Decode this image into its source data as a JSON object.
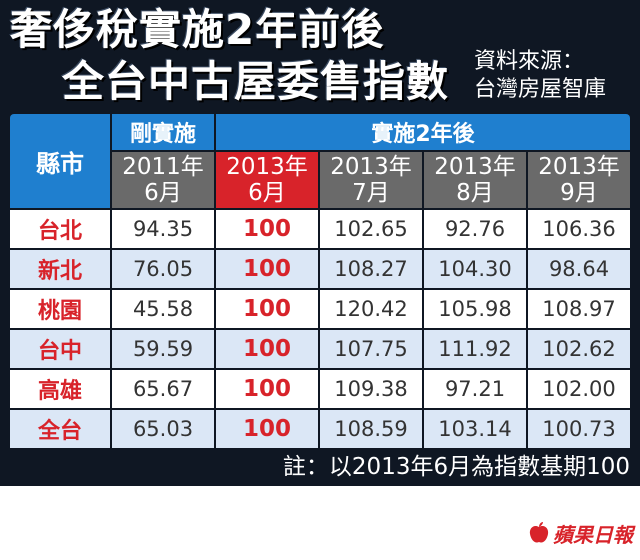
{
  "title": {
    "line1": "奢侈稅實施2年前後",
    "line2": "全台中古屋委售指數"
  },
  "source": {
    "line1": "資料來源：",
    "line2": "台灣房屋智庫"
  },
  "table": {
    "city_header": "縣市",
    "group_before": "剛實施",
    "group_after": "實施2年後",
    "columns": [
      {
        "year": "2011年",
        "month": "6月",
        "highlight": false
      },
      {
        "year": "2013年",
        "month": "6月",
        "highlight": true
      },
      {
        "year": "2013年",
        "month": "7月",
        "highlight": false
      },
      {
        "year": "2013年",
        "month": "8月",
        "highlight": false
      },
      {
        "year": "2013年",
        "month": "9月",
        "highlight": false
      }
    ],
    "rows": [
      {
        "city": "台北",
        "values": [
          "94.35",
          "100",
          "102.65",
          "92.76",
          "106.36"
        ]
      },
      {
        "city": "新北",
        "values": [
          "76.05",
          "100",
          "108.27",
          "104.30",
          "98.64"
        ]
      },
      {
        "city": "桃園",
        "values": [
          "45.58",
          "100",
          "120.42",
          "105.98",
          "108.97"
        ]
      },
      {
        "city": "台中",
        "values": [
          "59.59",
          "100",
          "107.75",
          "111.92",
          "102.62"
        ]
      },
      {
        "city": "高雄",
        "values": [
          "65.67",
          "100",
          "109.38",
          "97.21",
          "102.00"
        ]
      },
      {
        "city": "全台",
        "values": [
          "65.03",
          "100",
          "108.59",
          "103.14",
          "100.73"
        ]
      }
    ]
  },
  "note": "註：以2013年6月為指數基期100",
  "logo": {
    "text": "蘋果日報",
    "icon": "apple-icon"
  },
  "colors": {
    "background": "#0f1723",
    "header_blue": "#1f7fcf",
    "header_gray": "#6a6a6a",
    "accent_red": "#d8232a",
    "row_alt": "#dbe7f6"
  }
}
